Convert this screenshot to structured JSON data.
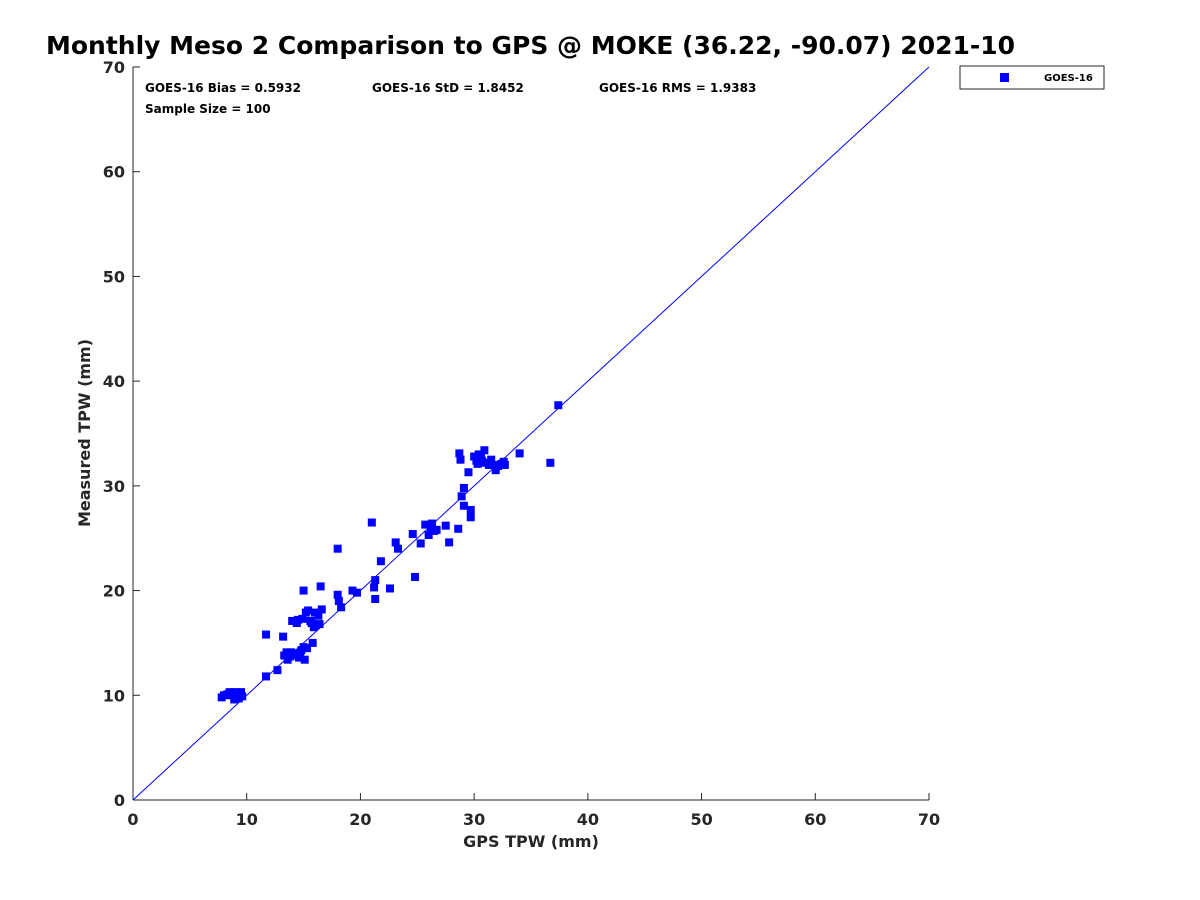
{
  "chart_data": {
    "type": "scatter",
    "title": "Monthly Meso 2 Comparison to GPS @ MOKE (36.22, -90.07) 2021-10",
    "xlabel": "GPS TPW (mm)",
    "ylabel": "Measured TPW (mm)",
    "xlim": [
      0,
      70
    ],
    "ylim": [
      0,
      70
    ],
    "xticks": [
      "0",
      "10",
      "20",
      "30",
      "40",
      "50",
      "60",
      "70"
    ],
    "yticks": [
      "0",
      "10",
      "20",
      "30",
      "40",
      "50",
      "60",
      "70"
    ],
    "grid": false,
    "legend_position": "outside-top-right",
    "reference_line": {
      "x": [
        0,
        70
      ],
      "y": [
        0,
        70
      ],
      "color": "#0000ff"
    },
    "stats": {
      "bias": "GOES-16 Bias = 0.5932",
      "std": "GOES-16 StD = 1.8452",
      "rms": "GOES-16 RMS = 1.9383",
      "sample_size": "Sample Size = 100"
    },
    "series": [
      {
        "name": "GOES-16",
        "color": "#0000ff",
        "marker": "square",
        "points": [
          [
            7.8,
            9.8
          ],
          [
            8.0,
            10.0
          ],
          [
            8.3,
            10.1
          ],
          [
            8.5,
            10.3
          ],
          [
            8.7,
            10.0
          ],
          [
            8.9,
            9.6
          ],
          [
            9.0,
            10.3
          ],
          [
            9.2,
            10.1
          ],
          [
            9.3,
            9.7
          ],
          [
            9.5,
            10.3
          ],
          [
            9.6,
            9.9
          ],
          [
            11.7,
            15.8
          ],
          [
            11.7,
            11.8
          ],
          [
            12.7,
            12.4
          ],
          [
            13.2,
            15.6
          ],
          [
            13.3,
            13.8
          ],
          [
            13.5,
            14.1
          ],
          [
            13.6,
            13.4
          ],
          [
            13.8,
            13.7
          ],
          [
            13.9,
            14.1
          ],
          [
            14.0,
            17.1
          ],
          [
            14.2,
            13.8
          ],
          [
            14.3,
            14.0
          ],
          [
            14.4,
            16.9
          ],
          [
            14.5,
            17.2
          ],
          [
            14.6,
            13.6
          ],
          [
            14.7,
            13.9
          ],
          [
            14.8,
            14.3
          ],
          [
            14.9,
            17.3
          ],
          [
            15.0,
            14.6
          ],
          [
            15.0,
            20.0
          ],
          [
            15.1,
            13.4
          ],
          [
            15.2,
            17.9
          ],
          [
            15.3,
            14.5
          ],
          [
            15.4,
            18.1
          ],
          [
            15.6,
            17.1
          ],
          [
            15.8,
            15.0
          ],
          [
            15.9,
            16.5
          ],
          [
            16.0,
            17.9
          ],
          [
            16.1,
            16.7
          ],
          [
            16.3,
            17.6
          ],
          [
            16.4,
            16.8
          ],
          [
            16.5,
            20.4
          ],
          [
            16.6,
            18.2
          ],
          [
            18.0,
            19.6
          ],
          [
            18.0,
            24.0
          ],
          [
            18.1,
            19.0
          ],
          [
            18.3,
            18.4
          ],
          [
            19.3,
            20.0
          ],
          [
            19.7,
            19.8
          ],
          [
            21.0,
            26.5
          ],
          [
            21.2,
            20.3
          ],
          [
            21.3,
            21.0
          ],
          [
            21.3,
            19.2
          ],
          [
            21.8,
            22.8
          ],
          [
            22.6,
            20.2
          ],
          [
            23.1,
            24.6
          ],
          [
            23.3,
            24.0
          ],
          [
            24.6,
            25.4
          ],
          [
            24.8,
            21.3
          ],
          [
            25.3,
            24.5
          ],
          [
            25.7,
            26.3
          ],
          [
            26.0,
            25.3
          ],
          [
            26.2,
            26.0
          ],
          [
            26.3,
            26.4
          ],
          [
            26.5,
            25.7
          ],
          [
            26.7,
            25.8
          ],
          [
            27.5,
            26.2
          ],
          [
            27.8,
            24.6
          ],
          [
            28.6,
            25.9
          ],
          [
            28.7,
            33.1
          ],
          [
            28.8,
            32.5
          ],
          [
            28.9,
            29.0
          ],
          [
            29.1,
            28.1
          ],
          [
            29.1,
            29.8
          ],
          [
            29.5,
            31.3
          ],
          [
            29.7,
            27.7
          ],
          [
            29.7,
            27.0
          ],
          [
            30.0,
            32.8
          ],
          [
            30.2,
            32.4
          ],
          [
            30.4,
            33.0
          ],
          [
            30.5,
            32.6
          ],
          [
            30.7,
            32.4
          ],
          [
            30.9,
            33.4
          ],
          [
            31.0,
            32.2
          ],
          [
            31.3,
            32.0
          ],
          [
            31.5,
            32.5
          ],
          [
            31.8,
            32.0
          ],
          [
            31.9,
            31.5
          ],
          [
            32.1,
            31.9
          ],
          [
            32.4,
            32.1
          ],
          [
            32.6,
            32.3
          ],
          [
            32.7,
            32.0
          ],
          [
            34.0,
            33.1
          ],
          [
            36.7,
            32.2
          ],
          [
            37.4,
            37.7
          ],
          [
            30.6,
            32.9
          ],
          [
            14.1,
            14.0
          ],
          [
            15.7,
            16.9
          ],
          [
            30.3,
            32.1
          ]
        ]
      }
    ]
  }
}
